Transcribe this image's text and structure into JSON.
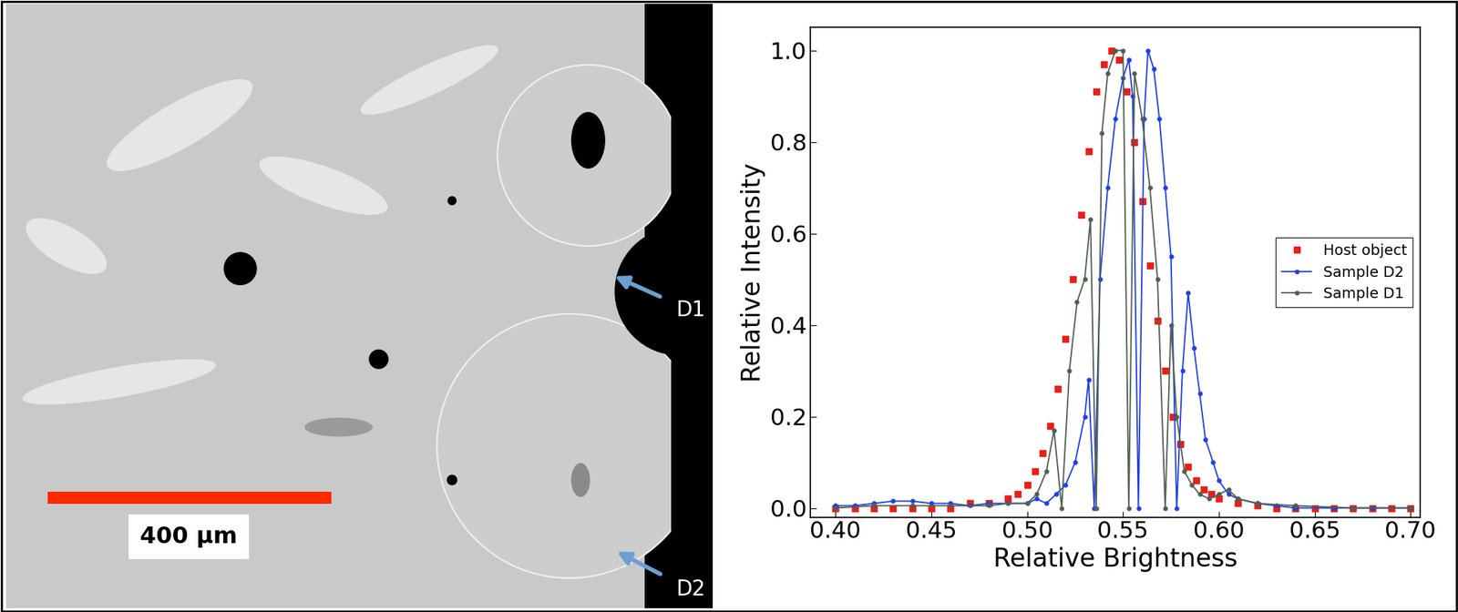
{
  "image_panel": {
    "labels": [
      "D1",
      "D2"
    ],
    "scale_bar": "400 µm"
  },
  "chart_data": {
    "type": "line",
    "x_label": "Relative Brightness",
    "y_label": "Relative Intensity",
    "xlim": [
      0.387,
      0.705
    ],
    "ylim": [
      -0.02,
      1.05
    ],
    "xticks": [
      {
        "value": 0.4,
        "label": "0.40"
      },
      0.45,
      {
        "value": 0.5,
        "label": "0.50"
      },
      0.55,
      {
        "value": 0.6,
        "label": "0.60"
      },
      0.65,
      {
        "value": 0.7,
        "label": "0.70"
      }
    ],
    "yticks": [
      0.0,
      0.2,
      0.4,
      0.6,
      0.8,
      1.0
    ],
    "legend": "center right",
    "grid": false,
    "series": [
      {
        "name": "Host object",
        "color": "#e8201c",
        "marker": "square",
        "line_style": "none",
        "x": [
          0.4,
          0.41,
          0.42,
          0.43,
          0.44,
          0.45,
          0.46,
          0.47,
          0.48,
          0.49,
          0.495,
          0.5,
          0.504,
          0.508,
          0.512,
          0.516,
          0.52,
          0.524,
          0.528,
          0.532,
          0.536,
          0.54,
          0.544,
          0.548,
          0.552,
          0.556,
          0.56,
          0.564,
          0.568,
          0.572,
          0.576,
          0.58,
          0.584,
          0.588,
          0.592,
          0.596,
          0.6,
          0.61,
          0.62,
          0.63,
          0.64,
          0.65,
          0.66,
          0.67,
          0.68,
          0.69,
          0.7
        ],
        "values": [
          0,
          0,
          0,
          0,
          0,
          0,
          0,
          0.01,
          0.01,
          0.02,
          0.03,
          0.05,
          0.08,
          0.12,
          0.18,
          0.26,
          0.37,
          0.5,
          0.64,
          0.78,
          0.91,
          0.97,
          1.0,
          0.98,
          0.91,
          0.8,
          0.67,
          0.53,
          0.41,
          0.3,
          0.2,
          0.14,
          0.09,
          0.06,
          0.04,
          0.03,
          0.02,
          0.01,
          0.005,
          0,
          0,
          0,
          0,
          0,
          0,
          0,
          0
        ]
      },
      {
        "name": "Sample D2",
        "color": "#2040e0",
        "marker": "circle",
        "line_style": "solid",
        "x": [
          0.4,
          0.41,
          0.42,
          0.43,
          0.44,
          0.45,
          0.46,
          0.47,
          0.48,
          0.49,
          0.5,
          0.505,
          0.51,
          0.515,
          0.52,
          0.525,
          0.53,
          0.532,
          0.535,
          0.538,
          0.542,
          0.546,
          0.55,
          0.553,
          0.555,
          0.558,
          0.561,
          0.563,
          0.566,
          0.569,
          0.572,
          0.575,
          0.578,
          0.581,
          0.584,
          0.587,
          0.59,
          0.593,
          0.597,
          0.6,
          0.605,
          0.61,
          0.62,
          0.63,
          0.64,
          0.66,
          0.68,
          0.7
        ],
        "values": [
          0.005,
          0.005,
          0.01,
          0.015,
          0.015,
          0.01,
          0.01,
          0.005,
          0.01,
          0.01,
          0.01,
          0.02,
          0.01,
          0.03,
          0.05,
          0.1,
          0.2,
          0.28,
          0.0,
          0.5,
          0.7,
          0.85,
          0.94,
          0.98,
          0.9,
          0.0,
          0.85,
          1.0,
          0.96,
          0.85,
          0.7,
          0.55,
          0.0,
          0.3,
          0.47,
          0.35,
          0.25,
          0.15,
          0.1,
          0.06,
          0.03,
          0.02,
          0.01,
          0.005,
          0,
          0,
          0,
          0
        ]
      },
      {
        "name": "Sample D1",
        "color": "#506050",
        "marker": "circle",
        "line_style": "solid",
        "x": [
          0.4,
          0.42,
          0.44,
          0.46,
          0.48,
          0.49,
          0.5,
          0.505,
          0.51,
          0.514,
          0.518,
          0.522,
          0.526,
          0.53,
          0.533,
          0.536,
          0.539,
          0.542,
          0.546,
          0.55,
          0.553,
          0.556,
          0.56,
          0.564,
          0.568,
          0.572,
          0.575,
          0.578,
          0.582,
          0.586,
          0.59,
          0.595,
          0.6,
          0.605,
          0.61,
          0.62,
          0.64,
          0.67,
          0.7
        ],
        "values": [
          0,
          0.005,
          0.005,
          0.005,
          0.005,
          0.01,
          0.01,
          0.03,
          0.08,
          0.17,
          0.0,
          0.3,
          0.45,
          0.5,
          0.63,
          0.0,
          0.82,
          0.95,
          1.0,
          1.0,
          0.0,
          0.95,
          0.85,
          0.7,
          0.5,
          0.0,
          0.4,
          0.2,
          0.08,
          0.05,
          0.03,
          0.02,
          0.03,
          0.04,
          0.02,
          0.01,
          0.005,
          0,
          0
        ]
      }
    ]
  }
}
